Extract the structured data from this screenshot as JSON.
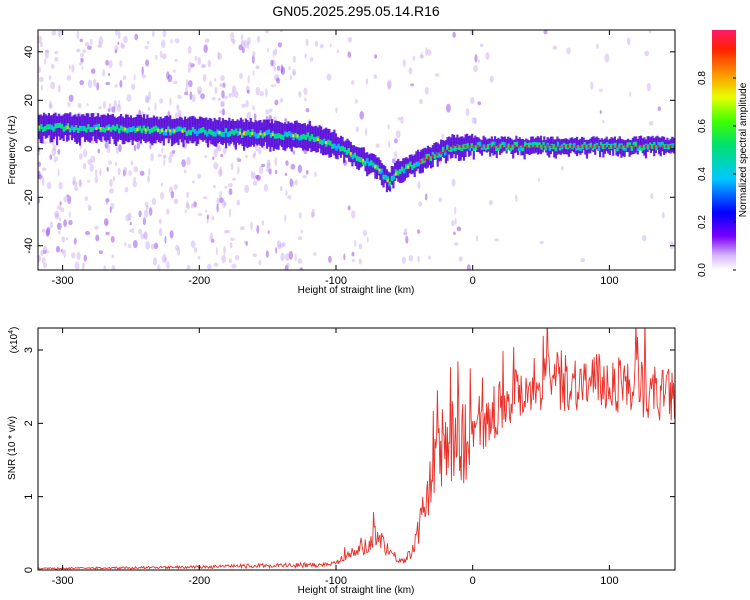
{
  "title": "GN05.2025.295.05.14.R16",
  "colors": {
    "snr_line": "#e8302a",
    "spectro_core": "#ff1a1a",
    "spectro_mid": "#00e08a",
    "spectro_outer": "#5000d8",
    "spectro_noise": "#c8a6f0"
  },
  "chart_data": [
    {
      "type": "heatmap",
      "xlabel": "Height of straight line (km)",
      "ylabel": "Frequency (Hz)",
      "xlim": [
        -318,
        148
      ],
      "ylim": [
        -50,
        49
      ],
      "x_ticks": [
        -300,
        -200,
        -100,
        0,
        100
      ],
      "y_ticks": [
        -40,
        -20,
        0,
        20,
        40
      ],
      "colorbar": {
        "label": "Normalized spectral amplitude",
        "range": [
          0,
          1
        ],
        "ticks": [
          "0.0",
          "0.2",
          "0.4",
          "0.6",
          "0.8"
        ],
        "colormap": "rainbow"
      },
      "ridge": {
        "x": [
          -318,
          -250,
          -200,
          -150,
          -120,
          -100,
          -90,
          -80,
          -70,
          -62,
          -55,
          -45,
          -35,
          -25,
          -15,
          -5,
          0,
          50,
          100,
          148
        ],
        "y": [
          9,
          8,
          7,
          6,
          5,
          1,
          -2,
          -5,
          -8,
          -14,
          -9,
          -7,
          -4,
          -2,
          1,
          1,
          1,
          1,
          1,
          1
        ]
      }
    },
    {
      "type": "line",
      "xlabel": "Height of straight line (km)",
      "ylabel": "SNR (10 * v/v)",
      "multiplier": "(x10^4)",
      "xlim": [
        -318,
        148
      ],
      "ylim": [
        0,
        3.3
      ],
      "x_ticks": [
        -300,
        -200,
        -100,
        0,
        100
      ],
      "y_ticks": [
        0,
        1,
        2,
        3
      ],
      "series": [
        {
          "x": [
            -318,
            -250,
            -200,
            -150,
            -110,
            -100,
            -95,
            -85,
            -75,
            -70,
            -65,
            -60,
            -55,
            -50,
            -45,
            -40,
            -35,
            -30,
            -25,
            -20,
            -15,
            -10,
            -5,
            0,
            5,
            10,
            15,
            20,
            30,
            40,
            50,
            60,
            80,
            100,
            120,
            148
          ],
          "y": [
            0.02,
            0.03,
            0.04,
            0.06,
            0.07,
            0.1,
            0.18,
            0.25,
            0.35,
            0.55,
            0.35,
            0.25,
            0.15,
            0.12,
            0.25,
            0.5,
            0.9,
            1.2,
            1.6,
            1.7,
            1.8,
            1.75,
            1.8,
            1.85,
            1.9,
            2.0,
            2.1,
            2.25,
            2.4,
            2.5,
            2.55,
            2.6,
            2.55,
            2.55,
            2.5,
            2.35
          ]
        }
      ]
    }
  ]
}
